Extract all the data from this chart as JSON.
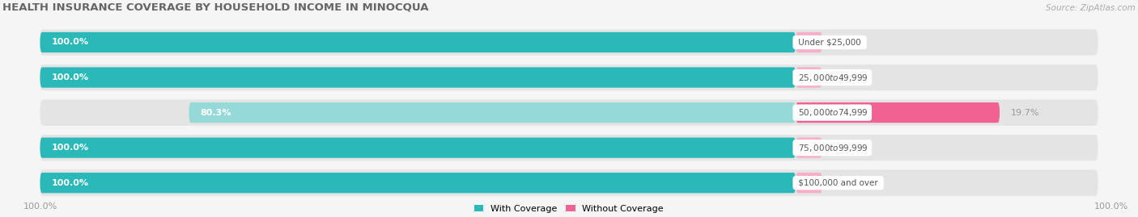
{
  "title": "HEALTH INSURANCE COVERAGE BY HOUSEHOLD INCOME IN MINOCQUA",
  "source": "Source: ZipAtlas.com",
  "categories": [
    "Under $25,000",
    "$25,000 to $49,999",
    "$50,000 to $74,999",
    "$75,000 to $99,999",
    "$100,000 and over"
  ],
  "with_coverage": [
    100.0,
    100.0,
    80.3,
    100.0,
    100.0
  ],
  "without_coverage": [
    0.0,
    0.0,
    19.7,
    0.0,
    0.0
  ],
  "color_with": "#2ab8b8",
  "color_with_light": "#96d9d9",
  "color_without_light": "#f9aec8",
  "color_without_dark": "#f06292",
  "bg_row": "#e4e4e4",
  "bg_figure": "#f5f5f5",
  "title_color": "#666666",
  "source_color": "#aaaaaa",
  "label_left_color": "#ffffff",
  "label_right_color": "#999999",
  "cat_label_color": "#555555",
  "title_fontsize": 9.5,
  "source_fontsize": 7.5,
  "bar_label_fontsize": 8,
  "category_label_fontsize": 7.5,
  "legend_fontsize": 8,
  "axis_label_fontsize": 8
}
